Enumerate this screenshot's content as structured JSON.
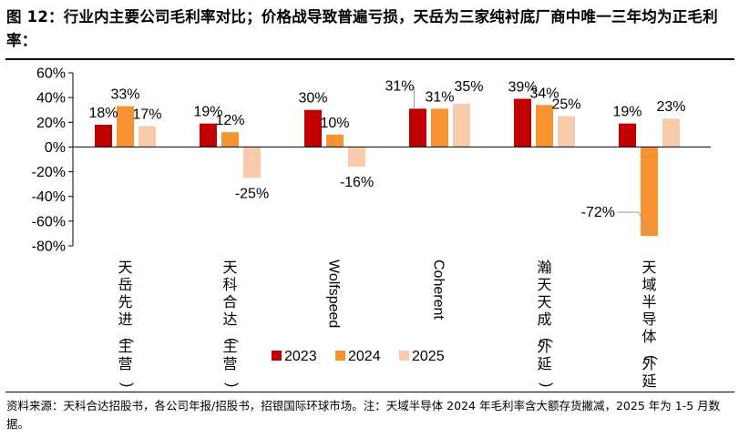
{
  "figure": {
    "title": "图 12：行业内主要公司毛利率对比；价格战导致普遍亏损，天岳为三家纯衬底厂商中唯一三年均为正毛利率：",
    "source": "资料来源：天科合达招股书，各公司年报/招股书，招银国际环球市场。注：天域半导体 2024 年毛利率含大额存货撇减，2025 年为 1-5 月数据。"
  },
  "chart_data": {
    "type": "bar",
    "categories": [
      "天岳先进(主营)",
      "天科合达(主营)",
      "Wolfspeed",
      "Coherent",
      "瀚天天成(外延)",
      "天域半导体(外延)"
    ],
    "category_orientation": [
      "vertical",
      "vertical",
      "rotated",
      "rotated",
      "vertical",
      "vertical"
    ],
    "series": [
      {
        "name": "2023",
        "color": "#c00000",
        "values": [
          18,
          19,
          30,
          31,
          39,
          19
        ],
        "labels": [
          "18%",
          "19%",
          "30%",
          "31%",
          "39%",
          "19%"
        ]
      },
      {
        "name": "2024",
        "color": "#f79431",
        "values": [
          33,
          12,
          10,
          31,
          34,
          -72
        ],
        "labels": [
          "33%",
          "12%",
          "10%",
          "31%",
          "34%",
          "-72%"
        ]
      },
      {
        "name": "2025",
        "color": "#f8cbad",
        "values": [
          17,
          -25,
          -16,
          35,
          25,
          23
        ],
        "labels": [
          "17%",
          "-25%",
          "-16%",
          "35%",
          "25%",
          "23%"
        ]
      }
    ],
    "ylim": [
      -80,
      60
    ],
    "yticks": [
      60,
      40,
      20,
      0,
      -20,
      -40,
      -60,
      -80
    ],
    "ytick_labels": [
      "60%",
      "40%",
      "20%",
      "0%",
      "-20%",
      "-40%",
      "-60%",
      "-80%"
    ],
    "xlabel": "",
    "ylabel": "",
    "grid": false,
    "legend_position": "bottom"
  }
}
